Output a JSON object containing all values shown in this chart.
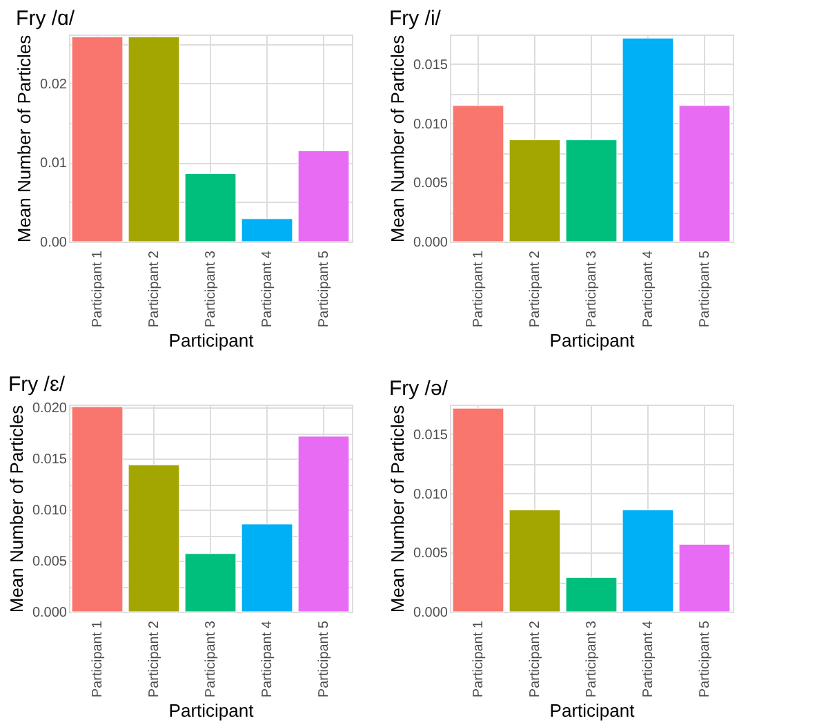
{
  "chart_data": [
    {
      "type": "bar",
      "title": "Fry /ɑ/",
      "xlabel": "Participant",
      "ylabel": "Mean Number of Particles",
      "categories": [
        "Participant 1",
        "Participant 2",
        "Participant 3",
        "Participant 4",
        "Participant 5"
      ],
      "values": [
        0.0259,
        0.0259,
        0.0086,
        0.0029,
        0.0115
      ],
      "colors": [
        "#f8766d",
        "#a3a500",
        "#00bf7d",
        "#00b0f6",
        "#e76bf3"
      ],
      "ylim": [
        0,
        0.0262
      ],
      "yticks": [
        {
          "value": 0,
          "label": "0.00"
        },
        {
          "value": 0.005,
          "label": null
        },
        0.01,
        {
          "value": 0.015,
          "label": null
        },
        0.02,
        {
          "value": 0.025,
          "label": null
        }
      ],
      "grid": true,
      "legend": false
    },
    {
      "type": "bar",
      "title": "Fry /i/",
      "xlabel": "Participant",
      "ylabel": "Mean Number of Particles",
      "categories": [
        "Participant 1",
        "Participant 2",
        "Participant 3",
        "Participant 4",
        "Participant 5"
      ],
      "values": [
        0.0115,
        0.0086,
        0.0086,
        0.0172,
        0.0115
      ],
      "colors": [
        "#f8766d",
        "#a3a500",
        "#00bf7d",
        "#00b0f6",
        "#e76bf3"
      ],
      "ylim": [
        0,
        0.0175
      ],
      "yticks": [
        {
          "value": 0,
          "label": "0.000"
        },
        {
          "value": 0.0025,
          "label": null
        },
        0.005,
        {
          "value": 0.0075,
          "label": null
        },
        {
          "value": 0.01,
          "label": "0.010"
        },
        {
          "value": 0.0125,
          "label": null
        },
        0.015
      ],
      "grid": true,
      "legend": false
    },
    {
      "type": "bar",
      "title": "Fry /ɛ/",
      "xlabel": "Participant",
      "ylabel": "Mean Number of Particles",
      "categories": [
        "Participant 1",
        "Participant 2",
        "Participant 3",
        "Participant 4",
        "Participant 5"
      ],
      "values": [
        0.0201,
        0.0144,
        0.0057,
        0.0086,
        0.0172
      ],
      "colors": [
        "#f8766d",
        "#a3a500",
        "#00bf7d",
        "#00b0f6",
        "#e76bf3"
      ],
      "ylim": [
        0,
        0.0203
      ],
      "yticks": [
        {
          "value": 0,
          "label": "0.000"
        },
        {
          "value": 0.0025,
          "label": null
        },
        0.005,
        {
          "value": 0.0075,
          "label": null
        },
        {
          "value": 0.01,
          "label": "0.010"
        },
        {
          "value": 0.0125,
          "label": null
        },
        0.015,
        {
          "value": 0.0175,
          "label": null
        },
        {
          "value": 0.02,
          "label": "0.020"
        }
      ],
      "grid": true,
      "legend": false
    },
    {
      "type": "bar",
      "title": "Fry /ə/",
      "xlabel": "Participant",
      "ylabel": "Mean Number of Particles",
      "categories": [
        "Participant 1",
        "Participant 2",
        "Participant 3",
        "Participant 4",
        "Participant 5"
      ],
      "values": [
        0.0172,
        0.0086,
        0.0029,
        0.0086,
        0.0057
      ],
      "colors": [
        "#f8766d",
        "#a3a500",
        "#00bf7d",
        "#00b0f6",
        "#e76bf3"
      ],
      "ylim": [
        0,
        0.0175
      ],
      "yticks": [
        {
          "value": 0,
          "label": "0.000"
        },
        {
          "value": 0.0025,
          "label": null
        },
        0.005,
        {
          "value": 0.0075,
          "label": null
        },
        {
          "value": 0.01,
          "label": "0.010"
        },
        {
          "value": 0.0125,
          "label": null
        },
        0.015
      ],
      "grid": true,
      "legend": false
    }
  ]
}
